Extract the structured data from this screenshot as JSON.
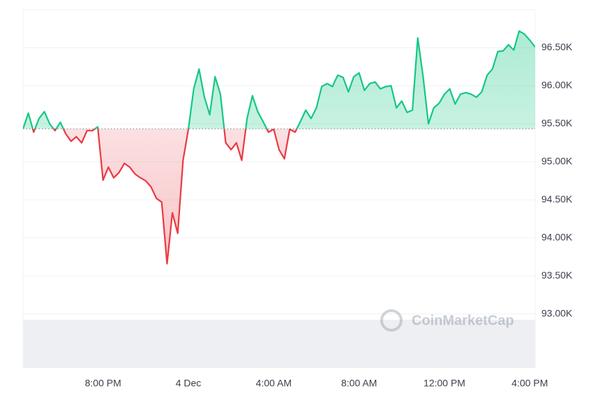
{
  "chart_data": {
    "type": "line",
    "watermark": "CoinMarketCap",
    "categories": [
      null,
      null,
      null,
      null,
      null,
      null,
      null,
      null,
      null,
      null,
      null,
      null,
      null,
      null,
      null,
      "8:00 PM",
      null,
      null,
      null,
      null,
      null,
      null,
      null,
      null,
      null,
      null,
      null,
      null,
      null,
      null,
      null,
      "4 Dec",
      null,
      null,
      null,
      null,
      null,
      null,
      null,
      null,
      null,
      null,
      null,
      null,
      null,
      null,
      null,
      "4:00 AM",
      null,
      null,
      null,
      null,
      null,
      null,
      null,
      null,
      null,
      null,
      null,
      null,
      null,
      null,
      null,
      "8:00 AM",
      null,
      null,
      null,
      null,
      null,
      null,
      null,
      null,
      null,
      null,
      null,
      null,
      null,
      null,
      null,
      "12:00 PM",
      null,
      null,
      null,
      null,
      null,
      null,
      null,
      null,
      null,
      null,
      null,
      null,
      null,
      null,
      null,
      "4:00 PM",
      null
    ],
    "values": [
      95434,
      95640,
      95390,
      95570,
      95660,
      95500,
      95410,
      95520,
      95370,
      95270,
      95330,
      95250,
      95410,
      95410,
      95460,
      94760,
      94930,
      94790,
      94860,
      94980,
      94930,
      94840,
      94790,
      94750,
      94670,
      94520,
      94470,
      93660,
      94330,
      94060,
      95020,
      95430,
      95960,
      96220,
      95850,
      95620,
      96120,
      95890,
      95250,
      95160,
      95250,
      95020,
      95570,
      95870,
      95660,
      95530,
      95390,
      95430,
      95160,
      95040,
      95430,
      95390,
      95530,
      95680,
      95570,
      95710,
      95990,
      96030,
      95990,
      96140,
      96110,
      95920,
      96120,
      96170,
      95940,
      96030,
      96050,
      95960,
      95990,
      96000,
      95710,
      95800,
      95650,
      95680,
      96630,
      96120,
      95500,
      95710,
      95770,
      95890,
      95960,
      95760,
      95890,
      95910,
      95890,
      95850,
      95920,
      96140,
      96220,
      96450,
      96460,
      96540,
      96470,
      96720,
      96680,
      96600,
      96510
    ],
    "reference": 95434,
    "colors": {
      "up": "#16c784",
      "down": "#ea3943"
    },
    "ylim": [
      92290,
      97000
    ],
    "yticks": [
      {
        "value": 93000,
        "label": "93.00K"
      },
      {
        "value": 93500,
        "label": "93.50K"
      },
      {
        "value": 94000,
        "label": "94.00K"
      },
      {
        "value": 94500,
        "label": "94.50K"
      },
      {
        "value": 95000,
        "label": "95.00K"
      },
      {
        "value": 95500,
        "label": "95.50K"
      },
      {
        "value": 96000,
        "label": "96.00K"
      },
      {
        "value": 96500,
        "label": "96.50K"
      }
    ],
    "grid": true
  }
}
